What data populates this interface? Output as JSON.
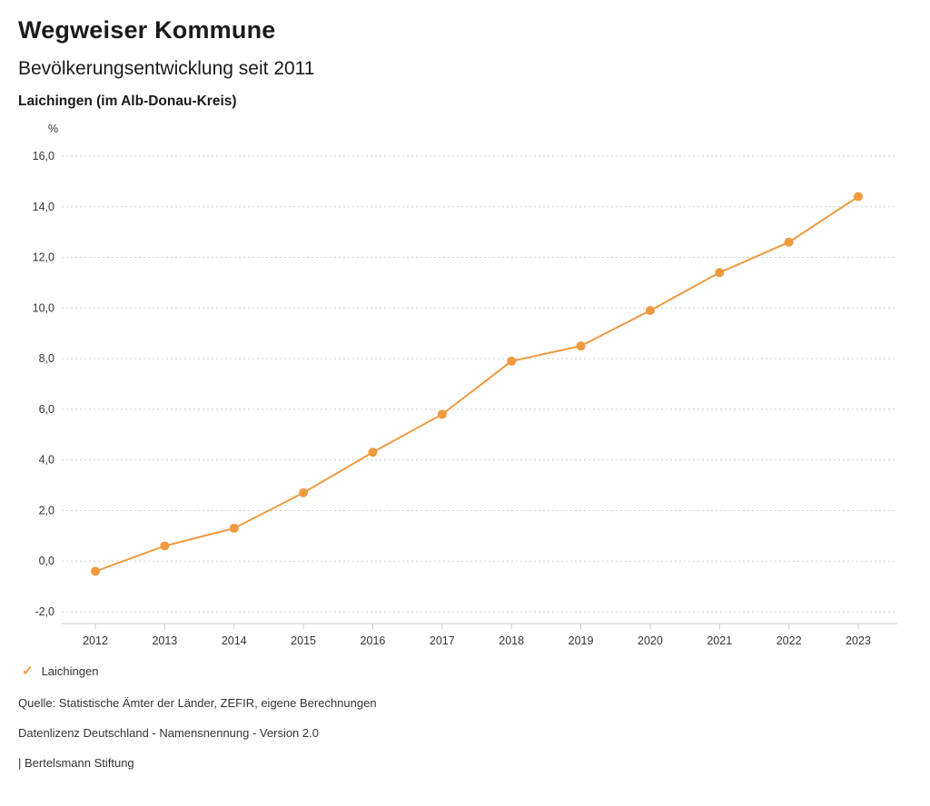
{
  "header": {
    "title": "Wegweiser Kommune",
    "subtitle": "Bevölkerungsentwicklung seit 2011",
    "location": "Laichingen (im Alb-Donau-Kreis)"
  },
  "chart_data": {
    "type": "line",
    "title": "Bevölkerungsentwicklung seit 2011",
    "unit_label": "%",
    "categories": [
      "2012",
      "2013",
      "2014",
      "2015",
      "2016",
      "2017",
      "2018",
      "2019",
      "2020",
      "2021",
      "2022",
      "2023"
    ],
    "series": [
      {
        "name": "Laichingen",
        "values": [
          -0.4,
          0.6,
          1.3,
          2.7,
          4.3,
          5.8,
          7.9,
          8.5,
          9.9,
          11.4,
          12.6,
          14.4
        ],
        "color": "#F09A40"
      }
    ],
    "ylim": [
      -2,
      16
    ],
    "ytick_step": 2,
    "decimal_separator": ",",
    "grid": "horizontal-dotted",
    "grid_color": "#cfcfcf",
    "axis_color": "#c9c9c9",
    "legend_position": "bottom-left"
  },
  "legend": {
    "items": [
      {
        "label": "Laichingen",
        "color": "#F09A40",
        "icon": "check-icon"
      }
    ]
  },
  "footer": {
    "source": "Quelle: Statistische Ämter der Länder, ZEFIR, eigene Berechnungen",
    "license": "Datenlizenz Deutschland - Namensnennung - Version 2.0",
    "attribution": "| Bertelsmann Stiftung"
  }
}
